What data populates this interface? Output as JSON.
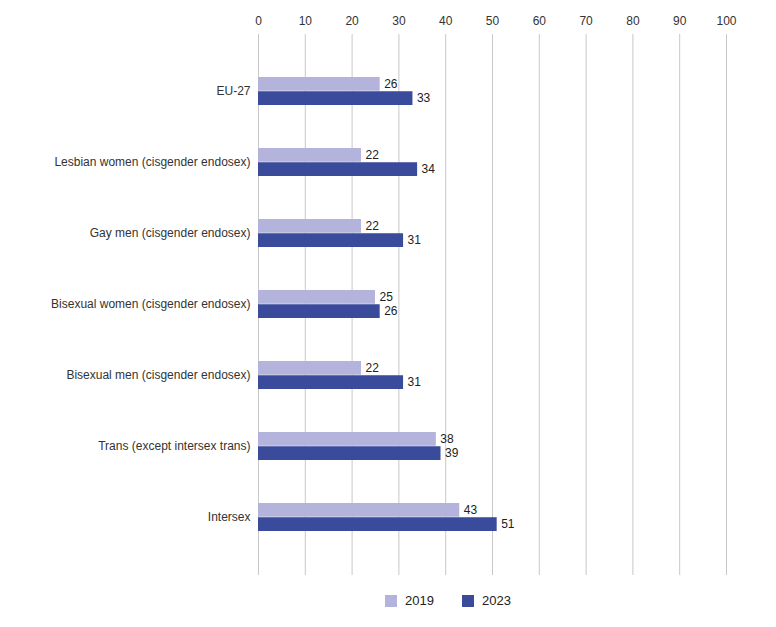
{
  "chart_data": {
    "type": "bar",
    "orientation": "horizontal",
    "categories": [
      "EU-27",
      "Lesbian women (cisgender endosex)",
      "Gay men (cisgender endosex)",
      "Bisexual women (cisgender endosex)",
      "Bisexual men (cisgender endosex)",
      "Trans (except intersex trans)",
      "Intersex"
    ],
    "series": [
      {
        "name": "2019",
        "color": "#b3b3dc",
        "values": [
          26,
          22,
          22,
          25,
          22,
          38,
          43
        ]
      },
      {
        "name": "2023",
        "color": "#3b4b9b",
        "values": [
          33,
          34,
          31,
          26,
          31,
          39,
          51
        ]
      }
    ],
    "xlim": [
      0,
      100
    ],
    "xticks": [
      0,
      10,
      20,
      30,
      40,
      50,
      60,
      70,
      80,
      90,
      100
    ],
    "grid": true,
    "data_labels": true,
    "legend": "bottom"
  }
}
